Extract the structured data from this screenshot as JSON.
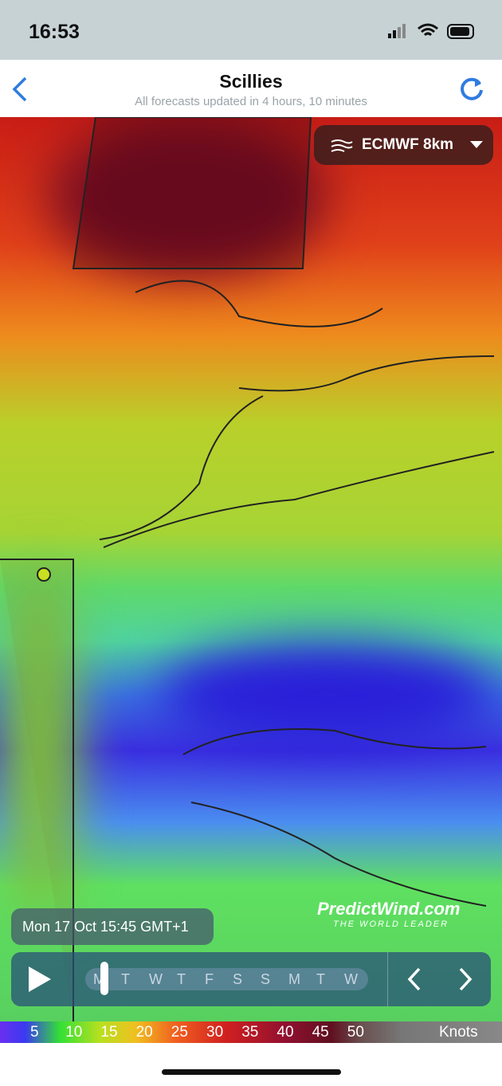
{
  "status": {
    "time": "16:53"
  },
  "header": {
    "title": "Scillies",
    "subtitle": "All forecasts updated in 4 hours, 10 minutes"
  },
  "model_selector": {
    "label": "ECMWF 8km"
  },
  "timestamp": "Mon 17 Oct 15:45 GMT+1",
  "timeline": {
    "days": [
      "M",
      "T",
      "W",
      "T",
      "F",
      "S",
      "S",
      "M",
      "T",
      "W"
    ]
  },
  "logo": {
    "name": "PredictWind.com",
    "tagline": "THE WORLD LEADER"
  },
  "legend": {
    "values": [
      5,
      10,
      15,
      20,
      25,
      30,
      35,
      40,
      45,
      50
    ],
    "unit": "Knots"
  }
}
